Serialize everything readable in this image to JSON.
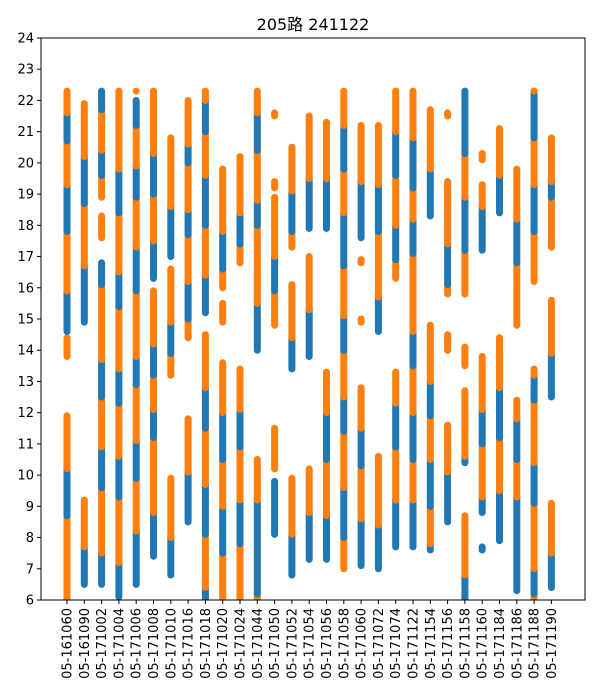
{
  "chart_data": {
    "type": "scatter",
    "title": "205路 241122",
    "xlabel": "",
    "ylabel": "",
    "ylim": [
      6,
      24
    ],
    "yticks": [
      6,
      7,
      8,
      9,
      10,
      11,
      12,
      13,
      14,
      15,
      16,
      17,
      18,
      19,
      20,
      21,
      22,
      23,
      24
    ],
    "grid": false,
    "categories": [
      "05-161060",
      "05-161090",
      "05-171002",
      "05-171004",
      "05-171006",
      "05-171008",
      "05-171010",
      "05-171016",
      "05-171018",
      "05-171020",
      "05-171024",
      "05-171044",
      "05-171050",
      "05-171052",
      "05-171054",
      "05-171056",
      "05-171058",
      "05-171060",
      "05-171072",
      "05-171074",
      "05-171122",
      "05-171154",
      "05-171156",
      "05-171158",
      "05-171160",
      "05-171184",
      "05-171186",
      "05-171188",
      "05-171190"
    ],
    "series_colors": [
      "#1f77b4",
      "#ff7f0e"
    ],
    "segments": [
      [
        [
          6.0,
          6.6,
          "o"
        ],
        [
          6.6,
          8.7,
          "o"
        ],
        [
          8.7,
          10.2,
          "b"
        ],
        [
          10.2,
          11.9,
          "o"
        ],
        [
          13.8,
          14.4,
          "o"
        ],
        [
          14.6,
          15.9,
          "b"
        ],
        [
          15.9,
          17.8,
          "o"
        ],
        [
          17.8,
          19.3,
          "b"
        ],
        [
          19.3,
          20.7,
          "o"
        ],
        [
          20.7,
          21.6,
          "b"
        ],
        [
          21.6,
          22.3,
          "o"
        ]
      ],
      [
        [
          6.5,
          7.7,
          "b"
        ],
        [
          7.7,
          9.2,
          "o"
        ],
        [
          14.9,
          16.7,
          "b"
        ],
        [
          16.7,
          18.7,
          "o"
        ],
        [
          18.7,
          20.2,
          "b"
        ],
        [
          20.2,
          21.9,
          "o"
        ]
      ],
      [
        [
          6.5,
          7.5,
          "b"
        ],
        [
          7.5,
          9.6,
          "o"
        ],
        [
          9.6,
          10.9,
          "b"
        ],
        [
          10.9,
          12.5,
          "o"
        ],
        [
          12.5,
          13.7,
          "b"
        ],
        [
          13.7,
          16.1,
          "o"
        ],
        [
          16.1,
          16.8,
          "b"
        ],
        [
          17.6,
          18.3,
          "o"
        ],
        [
          18.9,
          19.6,
          "o"
        ],
        [
          19.6,
          20.4,
          "b"
        ],
        [
          20.4,
          21.7,
          "o"
        ],
        [
          21.7,
          22.3,
          "b"
        ]
      ],
      [
        [
          6.1,
          7.2,
          "b"
        ],
        [
          7.2,
          9.3,
          "o"
        ],
        [
          9.3,
          10.6,
          "b"
        ],
        [
          10.6,
          12.3,
          "o"
        ],
        [
          12.3,
          13.4,
          "b"
        ],
        [
          13.4,
          15.4,
          "o"
        ],
        [
          15.4,
          16.5,
          "b"
        ],
        [
          16.5,
          18.4,
          "o"
        ],
        [
          18.4,
          19.8,
          "b"
        ],
        [
          19.8,
          22.3,
          "o"
        ]
      ],
      [
        [
          6.5,
          8.2,
          "b"
        ],
        [
          8.2,
          9.9,
          "o"
        ],
        [
          9.9,
          11.1,
          "b"
        ],
        [
          11.1,
          12.9,
          "o"
        ],
        [
          12.9,
          13.8,
          "b"
        ],
        [
          13.8,
          15.9,
          "o"
        ],
        [
          15.9,
          17.3,
          "b"
        ],
        [
          17.3,
          18.9,
          "o"
        ],
        [
          18.9,
          19.9,
          "b"
        ],
        [
          19.9,
          21.2,
          "o"
        ],
        [
          21.2,
          22.0,
          "b"
        ],
        [
          22.3,
          22.3,
          "o"
        ]
      ],
      [
        [
          7.4,
          8.8,
          "b"
        ],
        [
          8.8,
          11.2,
          "o"
        ],
        [
          11.2,
          12.1,
          "b"
        ],
        [
          12.1,
          13.2,
          "o"
        ],
        [
          13.2,
          14.2,
          "b"
        ],
        [
          14.2,
          15.9,
          "o"
        ],
        [
          16.3,
          17.5,
          "b"
        ],
        [
          17.5,
          19.0,
          "o"
        ],
        [
          19.0,
          20.3,
          "b"
        ],
        [
          20.3,
          22.3,
          "o"
        ]
      ],
      [
        [
          6.8,
          8.0,
          "b"
        ],
        [
          8.0,
          9.9,
          "o"
        ],
        [
          13.2,
          13.9,
          "o"
        ],
        [
          13.9,
          14.9,
          "b"
        ],
        [
          14.9,
          16.6,
          "o"
        ],
        [
          17.0,
          18.6,
          "b"
        ],
        [
          18.6,
          20.8,
          "o"
        ]
      ],
      [
        [
          8.5,
          10.1,
          "b"
        ],
        [
          10.1,
          11.8,
          "o"
        ],
        [
          14.4,
          15.0,
          "o"
        ],
        [
          15.0,
          16.2,
          "b"
        ],
        [
          16.2,
          17.7,
          "o"
        ],
        [
          17.7,
          18.5,
          "b"
        ],
        [
          18.5,
          20.0,
          "o"
        ],
        [
          20.0,
          20.6,
          "b"
        ],
        [
          20.6,
          22.0,
          "o"
        ]
      ],
      [
        [
          6.0,
          6.4,
          "b"
        ],
        [
          6.4,
          8.1,
          "o"
        ],
        [
          8.1,
          9.7,
          "b"
        ],
        [
          9.7,
          11.5,
          "o"
        ],
        [
          11.5,
          12.8,
          "b"
        ],
        [
          12.8,
          14.5,
          "o"
        ],
        [
          15.2,
          16.4,
          "b"
        ],
        [
          16.4,
          18.0,
          "o"
        ],
        [
          18.0,
          19.6,
          "b"
        ],
        [
          19.6,
          21.0,
          "o"
        ],
        [
          21.0,
          22.0,
          "b"
        ],
        [
          22.0,
          22.3,
          "o"
        ]
      ],
      [
        [
          6.0,
          7.5,
          "o"
        ],
        [
          7.5,
          9.0,
          "b"
        ],
        [
          9.0,
          10.5,
          "o"
        ],
        [
          10.5,
          12.0,
          "b"
        ],
        [
          12.0,
          13.6,
          "o"
        ],
        [
          14.9,
          15.5,
          "o"
        ],
        [
          16.0,
          16.6,
          "o"
        ],
        [
          16.6,
          17.8,
          "b"
        ],
        [
          17.8,
          19.8,
          "o"
        ]
      ],
      [
        [
          6.0,
          7.8,
          "o"
        ],
        [
          7.8,
          9.2,
          "b"
        ],
        [
          9.2,
          10.9,
          "o"
        ],
        [
          10.9,
          12.1,
          "b"
        ],
        [
          12.1,
          13.4,
          "o"
        ],
        [
          16.8,
          17.4,
          "o"
        ],
        [
          17.4,
          18.4,
          "b"
        ],
        [
          18.4,
          20.2,
          "o"
        ]
      ],
      [
        [
          6.0,
          6.2,
          "o"
        ],
        [
          6.2,
          9.2,
          "b"
        ],
        [
          9.2,
          10.5,
          "o"
        ],
        [
          14.0,
          15.5,
          "b"
        ],
        [
          15.5,
          18.0,
          "o"
        ],
        [
          18.0,
          18.8,
          "b"
        ],
        [
          18.8,
          20.4,
          "o"
        ],
        [
          20.4,
          21.6,
          "b"
        ],
        [
          21.6,
          22.3,
          "o"
        ]
      ],
      [
        [
          8.1,
          9.8,
          "b"
        ],
        [
          10.2,
          11.5,
          "o"
        ],
        [
          14.8,
          15.9,
          "o"
        ],
        [
          15.9,
          17.0,
          "b"
        ],
        [
          17.0,
          18.9,
          "o"
        ],
        [
          19.2,
          19.4,
          "o"
        ],
        [
          21.5,
          21.6,
          "o"
        ]
      ],
      [
        [
          6.8,
          8.1,
          "b"
        ],
        [
          8.1,
          9.9,
          "o"
        ],
        [
          13.4,
          14.4,
          "b"
        ],
        [
          14.4,
          16.1,
          "o"
        ],
        [
          17.3,
          17.8,
          "o"
        ],
        [
          17.8,
          19.1,
          "b"
        ],
        [
          19.1,
          20.5,
          "o"
        ]
      ],
      [
        [
          7.3,
          8.8,
          "b"
        ],
        [
          8.8,
          10.2,
          "o"
        ],
        [
          13.8,
          15.3,
          "b"
        ],
        [
          15.3,
          17.0,
          "o"
        ],
        [
          17.9,
          19.5,
          "b"
        ],
        [
          19.5,
          21.5,
          "o"
        ]
      ],
      [
        [
          7.3,
          8.7,
          "b"
        ],
        [
          8.7,
          10.5,
          "o"
        ],
        [
          10.5,
          12.0,
          "b"
        ],
        [
          12.0,
          13.3,
          "o"
        ],
        [
          17.9,
          19.5,
          "b"
        ],
        [
          19.5,
          21.3,
          "o"
        ]
      ],
      [
        [
          7.0,
          8.0,
          "o"
        ],
        [
          8.0,
          9.6,
          "b"
        ],
        [
          9.6,
          11.4,
          "o"
        ],
        [
          11.4,
          12.5,
          "b"
        ],
        [
          12.5,
          14.0,
          "o"
        ],
        [
          14.0,
          15.1,
          "b"
        ],
        [
          15.1,
          16.7,
          "o"
        ],
        [
          16.7,
          18.4,
          "b"
        ],
        [
          18.4,
          19.8,
          "o"
        ],
        [
          19.8,
          21.2,
          "b"
        ],
        [
          21.2,
          22.3,
          "o"
        ]
      ],
      [
        [
          7.1,
          8.6,
          "b"
        ],
        [
          8.6,
          10.3,
          "o"
        ],
        [
          10.3,
          11.5,
          "b"
        ],
        [
          11.5,
          12.8,
          "o"
        ],
        [
          14.9,
          15.0,
          "o"
        ],
        [
          16.8,
          16.9,
          "o"
        ],
        [
          17.6,
          19.4,
          "b"
        ],
        [
          19.4,
          21.2,
          "o"
        ]
      ],
      [
        [
          7.0,
          8.4,
          "b"
        ],
        [
          8.4,
          10.6,
          "o"
        ],
        [
          14.6,
          15.7,
          "b"
        ],
        [
          15.7,
          17.8,
          "o"
        ],
        [
          17.8,
          19.3,
          "b"
        ],
        [
          19.3,
          21.2,
          "o"
        ]
      ],
      [
        [
          7.7,
          9.2,
          "b"
        ],
        [
          9.2,
          10.9,
          "o"
        ],
        [
          10.9,
          12.3,
          "b"
        ],
        [
          12.3,
          13.3,
          "o"
        ],
        [
          16.3,
          16.9,
          "o"
        ],
        [
          16.9,
          18.0,
          "b"
        ],
        [
          18.0,
          19.6,
          "o"
        ],
        [
          19.6,
          21.0,
          "b"
        ],
        [
          21.0,
          22.3,
          "o"
        ]
      ],
      [
        [
          7.7,
          9.2,
          "b"
        ],
        [
          9.2,
          10.5,
          "o"
        ],
        [
          10.5,
          12.0,
          "b"
        ],
        [
          12.0,
          13.5,
          "o"
        ],
        [
          13.5,
          14.6,
          "b"
        ],
        [
          14.6,
          17.1,
          "o"
        ],
        [
          17.1,
          18.2,
          "b"
        ],
        [
          18.2,
          19.2,
          "o"
        ],
        [
          19.2,
          20.8,
          "b"
        ],
        [
          20.8,
          22.3,
          "o"
        ]
      ],
      [
        [
          7.6,
          7.8,
          "b"
        ],
        [
          7.8,
          9.0,
          "o"
        ],
        [
          9.0,
          10.5,
          "b"
        ],
        [
          10.5,
          11.9,
          "o"
        ],
        [
          11.9,
          13.0,
          "b"
        ],
        [
          13.0,
          14.8,
          "o"
        ],
        [
          18.3,
          19.8,
          "b"
        ],
        [
          19.8,
          21.7,
          "o"
        ]
      ],
      [
        [
          8.5,
          10.1,
          "b"
        ],
        [
          10.1,
          11.6,
          "o"
        ],
        [
          14.0,
          14.5,
          "o"
        ],
        [
          15.8,
          16.1,
          "o"
        ],
        [
          16.1,
          17.4,
          "b"
        ],
        [
          17.4,
          19.4,
          "o"
        ],
        [
          21.5,
          21.6,
          "o"
        ]
      ],
      [
        [
          6.0,
          6.8,
          "b"
        ],
        [
          6.8,
          8.7,
          "o"
        ],
        [
          10.4,
          10.6,
          "b"
        ],
        [
          10.6,
          12.7,
          "o"
        ],
        [
          13.5,
          14.1,
          "o"
        ],
        [
          15.8,
          17.2,
          "o"
        ],
        [
          17.2,
          18.9,
          "b"
        ],
        [
          18.9,
          20.3,
          "o"
        ],
        [
          20.3,
          22.3,
          "b"
        ]
      ],
      [
        [
          7.6,
          7.7,
          "b"
        ],
        [
          8.8,
          9.3,
          "b"
        ],
        [
          9.3,
          11.0,
          "o"
        ],
        [
          11.0,
          12.1,
          "b"
        ],
        [
          12.1,
          13.8,
          "o"
        ],
        [
          17.2,
          18.6,
          "b"
        ],
        [
          18.6,
          19.3,
          "o"
        ],
        [
          20.1,
          20.3,
          "o"
        ]
      ],
      [
        [
          7.9,
          9.5,
          "b"
        ],
        [
          9.5,
          11.2,
          "o"
        ],
        [
          11.2,
          12.8,
          "b"
        ],
        [
          12.8,
          14.4,
          "o"
        ],
        [
          18.4,
          19.6,
          "b"
        ],
        [
          19.6,
          21.1,
          "o"
        ]
      ],
      [
        [
          6.3,
          7.3,
          "b"
        ],
        [
          7.3,
          9.3,
          "b"
        ],
        [
          9.3,
          10.5,
          "o"
        ],
        [
          10.5,
          11.8,
          "b"
        ],
        [
          11.8,
          12.4,
          "o"
        ],
        [
          14.8,
          16.2,
          "o"
        ],
        [
          16.2,
          16.8,
          "o"
        ],
        [
          16.8,
          18.2,
          "b"
        ],
        [
          18.2,
          19.8,
          "o"
        ]
      ],
      [
        [
          6.0,
          6.2,
          "o"
        ],
        [
          6.2,
          7.0,
          "b"
        ],
        [
          7.0,
          9.1,
          "o"
        ],
        [
          9.1,
          10.4,
          "b"
        ],
        [
          10.4,
          12.4,
          "o"
        ],
        [
          12.4,
          13.2,
          "b"
        ],
        [
          13.2,
          13.4,
          "o"
        ],
        [
          16.2,
          17.8,
          "o"
        ],
        [
          17.8,
          19.3,
          "b"
        ],
        [
          19.3,
          20.8,
          "o"
        ],
        [
          20.8,
          22.3,
          "b"
        ],
        [
          22.3,
          22.3,
          "o"
        ]
      ],
      [
        [
          6.4,
          7.5,
          "b"
        ],
        [
          7.5,
          9.1,
          "o"
        ],
        [
          12.5,
          13.9,
          "b"
        ],
        [
          13.9,
          15.6,
          "o"
        ],
        [
          17.3,
          18.9,
          "o"
        ],
        [
          18.9,
          19.4,
          "b"
        ],
        [
          19.4,
          20.8,
          "o"
        ]
      ]
    ]
  }
}
